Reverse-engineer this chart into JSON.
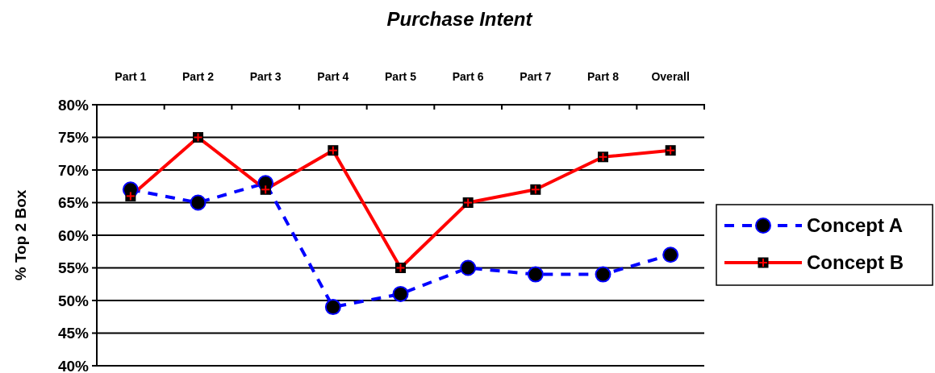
{
  "chart_data": {
    "type": "line",
    "title": "Purchase Intent",
    "ylabel": "% Top 2 Box",
    "categories": [
      "Part 1",
      "Part 2",
      "Part 3",
      "Part 4",
      "Part 5",
      "Part 6",
      "Part 7",
      "Part 8",
      "Overall"
    ],
    "series": [
      {
        "name": "Concept A",
        "color": "#0000ff",
        "marker": "circle",
        "line_style": "dashed",
        "values": [
          67,
          65,
          68,
          49,
          51,
          55,
          54,
          54,
          57
        ]
      },
      {
        "name": "Concept B",
        "color": "#ff0000",
        "marker": "square",
        "line_style": "solid",
        "values": [
          66,
          75,
          67,
          73,
          55,
          65,
          67,
          72,
          73
        ]
      }
    ],
    "ylim": [
      40,
      80
    ],
    "yticks": [
      {
        "value": 40,
        "label": "40%"
      },
      {
        "value": 45,
        "label": "45%"
      },
      {
        "value": 50,
        "label": "50%"
      },
      {
        "value": 55,
        "label": "55%"
      },
      {
        "value": 60,
        "label": "60%"
      },
      {
        "value": 65,
        "label": "65%"
      },
      {
        "value": 70,
        "label": "70%"
      },
      {
        "value": 75,
        "label": "75%"
      },
      {
        "value": 80,
        "label": "80%"
      }
    ],
    "grid": "y",
    "legend": "right"
  }
}
